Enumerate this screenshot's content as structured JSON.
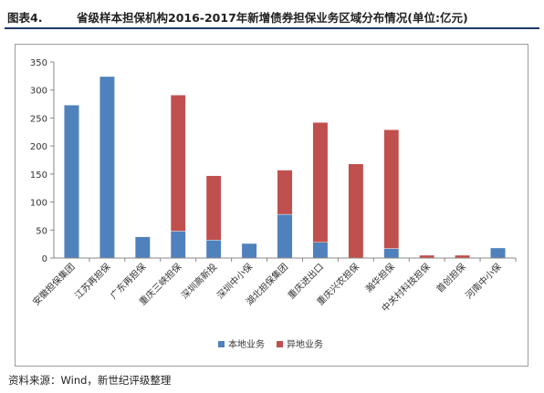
{
  "header": {
    "figure_label": "图表4.",
    "title": "省级样本担保机构2016-2017年新增债券担保业务区域分布情况(单位:亿元)"
  },
  "chart_data": {
    "type": "bar",
    "stacked": true,
    "categories": [
      "安徽担保集团",
      "江苏再担保",
      "广东再担保",
      "重庆三峡担保",
      "深圳高新投",
      "深圳中小保",
      "湖北担保集团",
      "重庆进出口",
      "重庆兴农担保",
      "瀚华担保",
      "中关村科技担保",
      "首创担保",
      "河南中小保"
    ],
    "series": [
      {
        "name": "本地业务",
        "color": "#4f81bd",
        "values": [
          273,
          324,
          38,
          48,
          32,
          26,
          78,
          28,
          0,
          17,
          0,
          0,
          18
        ]
      },
      {
        "name": "异地业务",
        "color": "#c0504d",
        "values": [
          0,
          0,
          0,
          243,
          115,
          0,
          79,
          214,
          168,
          212,
          5,
          5,
          0
        ]
      }
    ],
    "ylim": [
      0,
      350
    ],
    "yticks": [
      0,
      50,
      100,
      150,
      200,
      250,
      300,
      350
    ],
    "ytick_labels": [
      "0",
      "50",
      "100",
      "150",
      "200",
      "250",
      "300",
      "350"
    ],
    "grid": false,
    "legend_position": "bottom"
  },
  "source": "资料来源：Wind，新世纪评级整理"
}
